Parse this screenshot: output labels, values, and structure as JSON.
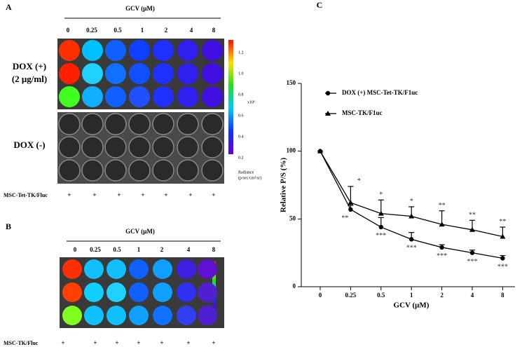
{
  "panel_a": {
    "letter": "A",
    "header": "GCV (μM)",
    "concentrations": [
      "0",
      "0.25",
      "0.5",
      "1",
      "2",
      "4",
      "8"
    ],
    "row_labels": [
      "DOX (+)",
      "(2 μg/ml)",
      "DOX (-)"
    ],
    "colorbar": {
      "ticks": [
        "1.2",
        "1.0",
        "0.8",
        "0.6",
        "0.4",
        "0.2"
      ],
      "exponent": "x10⁶",
      "title": "Radiance",
      "unit": "(p/sec/cm²/sr)"
    },
    "cell_line": "MSC-Tet-TK/Fluc",
    "markers": [
      "+",
      "+",
      "+",
      "+",
      "+",
      "+",
      "+"
    ]
  },
  "panel_b": {
    "letter": "B",
    "header": "GCV (μM)",
    "concentrations": [
      "0",
      "0.25",
      "0.5",
      "1",
      "2",
      "4",
      "8"
    ],
    "cell_line": "MSC-TK/Fluc",
    "markers": [
      "+",
      "+",
      "+",
      "+",
      "+",
      "+",
      "+"
    ]
  },
  "chart_data": {
    "type": "line",
    "title": "C",
    "x_label": "GCV (μM)",
    "y_label": "Relative P/S (%)",
    "categories": [
      "0",
      "0.25",
      "0.5",
      "1",
      "2",
      "4",
      "8"
    ],
    "ylim": [
      0,
      150
    ],
    "yticks": [
      0,
      50,
      100,
      150
    ],
    "series": [
      {
        "name": "DOX (+) MSC-Tet-TK/F1uc",
        "color": "#000000",
        "marker": "circle",
        "values": [
          100,
          57,
          44,
          35,
          29,
          25,
          21
        ],
        "errors": [
          0,
          3,
          7,
          5,
          2,
          2,
          2
        ],
        "significance": [
          null,
          "**",
          "***",
          "***",
          "***",
          "***",
          "***"
        ]
      },
      {
        "name": "MSC-TK/F1uc",
        "color": "#000000",
        "marker": "triangle",
        "values": [
          100,
          62,
          54,
          52,
          46,
          42,
          37
        ],
        "errors": [
          0,
          12,
          10,
          7,
          10,
          7,
          7
        ],
        "significance": [
          null,
          "*",
          "*",
          "*",
          "**",
          "**",
          "**"
        ]
      }
    ]
  }
}
